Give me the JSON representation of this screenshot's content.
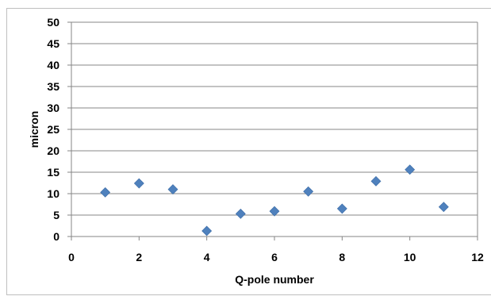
{
  "chart_data": {
    "type": "scatter",
    "title": "",
    "xlabel": "Q-pole number",
    "ylabel": "micron",
    "xlim": [
      0,
      12
    ],
    "ylim": [
      0,
      50
    ],
    "x_ticks": [
      0,
      2,
      4,
      6,
      8,
      10,
      12
    ],
    "y_ticks": [
      0,
      5,
      10,
      15,
      20,
      25,
      30,
      35,
      40,
      45,
      50
    ],
    "grid": "horizontal",
    "legend": "none",
    "marker": "diamond",
    "marker_color": "#4f81bd",
    "gridline_color": "#878787",
    "series": [
      {
        "x": [
          1,
          2,
          3,
          4,
          5,
          6,
          7,
          8,
          9,
          10,
          11
        ],
        "y": [
          10.3,
          12.4,
          11.0,
          1.3,
          5.3,
          5.9,
          10.5,
          6.5,
          12.9,
          15.6,
          6.9
        ]
      }
    ]
  }
}
